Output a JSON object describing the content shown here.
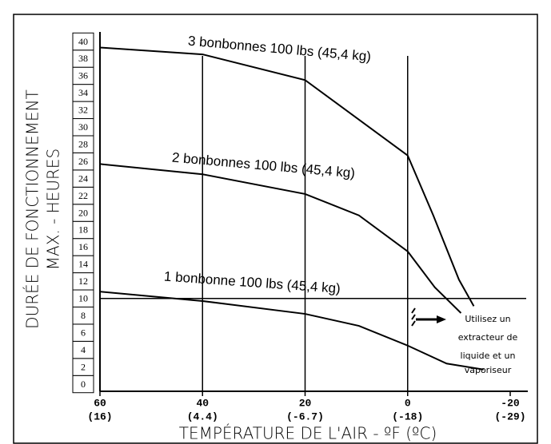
{
  "chart_data": {
    "type": "line",
    "y_title_lines": [
      "DURÉE DE FONCTIONNEMENT",
      "MAX. - HEURES"
    ],
    "x_title": "TEMPÉRATURE DE L'AIR - ºF (ºC)",
    "xlim": [
      60,
      -20
    ],
    "ylim": [
      0,
      40
    ],
    "xticks": [
      60,
      40,
      20,
      0,
      -20
    ],
    "xticks_celsius": [
      "(16)",
      "(4.4)",
      "(-6.7)",
      "(-18)",
      "(-29)"
    ],
    "yticks": [
      0,
      2,
      4,
      6,
      8,
      10,
      12,
      14,
      16,
      18,
      20,
      22,
      24,
      26,
      28,
      30,
      32,
      34,
      36,
      38,
      40
    ],
    "grid_x": [
      40,
      20,
      0
    ],
    "reference_y": 10,
    "series": [
      {
        "name": "3 bonbonnes 100 lbs (45,4 kg)",
        "color": "#000000",
        "x": [
          60,
          40,
          20,
          0,
          -5,
          -10,
          -12.9
        ],
        "values": [
          39.3,
          38.5,
          35.5,
          26.7,
          19.7,
          12.2,
          9.1
        ]
      },
      {
        "name": "2 bonbonnes 100 lbs (45,4 kg)",
        "color": "#000000",
        "x": [
          60,
          40,
          20,
          9.5,
          0,
          -5.3,
          -10.4
        ],
        "values": [
          25.7,
          24.5,
          22.2,
          19.7,
          15.5,
          11.3,
          8.3
        ]
      },
      {
        "name": "1 bonbonne 100 lbs (45,4 kg)",
        "color": "#000000",
        "x": [
          60,
          40,
          20,
          9.5,
          0,
          -7.6,
          -14.8
        ],
        "values": [
          10.8,
          9.7,
          8.2,
          6.8,
          4.5,
          2.4,
          1.7
        ]
      }
    ],
    "annotation_lines": [
      "Utilisez un",
      "extracteur de",
      "liquide et un",
      "vaporiseur"
    ]
  }
}
